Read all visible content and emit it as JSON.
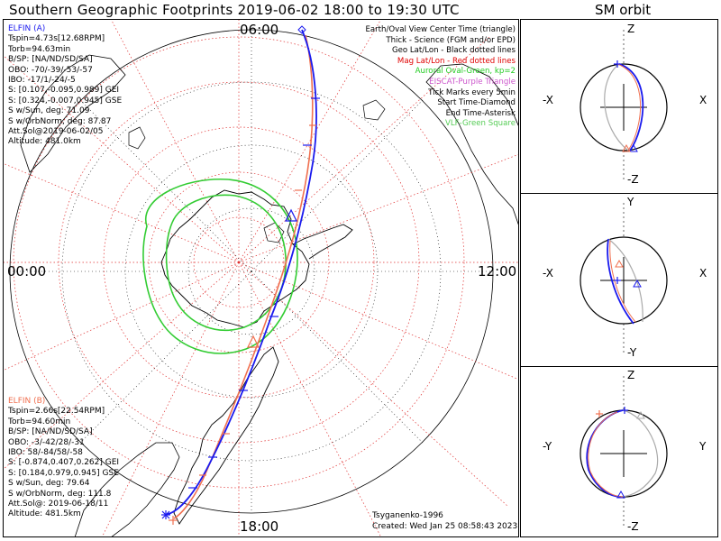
{
  "header": {
    "title": "Southern Geographic Footprints 2019-06-02 18:00 to 19:30 UTC",
    "sm_title": "SM orbit"
  },
  "map": {
    "hour_labels": {
      "top": "06:00",
      "left": "00:00",
      "right": "12:00",
      "bottom": "18:00"
    }
  },
  "elfin_a": {
    "name": "ELFIN (A)",
    "color": "#1a1aee",
    "lines": [
      "Tspin=4.73s[12.68RPM]",
      "Torb=94.63min",
      "B/SP: [NA/ND/SD/SA]",
      "OBO: -70/-39/-53/-57",
      "IBO: -17/1/-24/-5",
      "S: [0.107,-0.095,0.989] GEI",
      "S: [0.324,-0.007,0.945] GSE",
      "S w/Sun, deg: 71.09",
      "S w/OrbNorm, deg: 87.87",
      "Att.Sol@2019-06-02/05",
      "Altitude: 481.0km"
    ]
  },
  "elfin_b": {
    "name": "ELFIN (B)",
    "color": "#f07050",
    "lines": [
      "Tspin=2.66s[22.54RPM]",
      "Torb=94.60min",
      "B/SP: [NA/ND/SD/SA]",
      "OBO: -3/-42/28/-31",
      "IBO: 58/-84/58/-58",
      "S: [-0.874,0.407,0.262] GEI",
      "S: [0.184,0.979,0.945] GSE",
      "S w/Sun, deg: 79.64",
      "S w/OrbNorm, deg: 111.8",
      "Att.Sol@: 2019-06-18/11",
      "Altitude: 481.5km"
    ]
  },
  "legend": [
    {
      "text": "Earth/Oval View Center Time (triangle)",
      "color": "#000000"
    },
    {
      "text": "Thick - Science (FGM and/or EPD)",
      "color": "#000000"
    },
    {
      "text": "Geo Lat/Lon - Black dotted lines",
      "color": "#000000"
    },
    {
      "text": "Mag Lat/Lon - Red dotted lines",
      "color": "#e00000"
    },
    {
      "text": "Auroral Oval-Green, kp=2",
      "color": "#22cc22"
    },
    {
      "text": "EISCAT-Purple Triangle",
      "color": "#cc55cc"
    },
    {
      "text": "Tick Marks every 5min",
      "color": "#000000"
    },
    {
      "text": "Start Time-Diamond",
      "color": "#000000"
    },
    {
      "text": "End Time-Asterisk",
      "color": "#000000"
    },
    {
      "text": "VLF-Green Square",
      "color": "#55cc55"
    }
  ],
  "footer": {
    "model": "Tsyganenko-1996",
    "created": "Created: Wed Jan 25 08:58:43 2023"
  },
  "sm_panels": [
    {
      "top": "Z",
      "bottom": "-Z",
      "left": "-X",
      "right": "X"
    },
    {
      "top": "Y",
      "bottom": "-Y",
      "left": "-X",
      "right": "X"
    },
    {
      "top": "Z",
      "bottom": "-Z",
      "left": "-Y",
      "right": "Y"
    }
  ],
  "colors": {
    "oval": "#33cc33",
    "mag_grid": "#e03030",
    "geo_grid": "#000000",
    "orbit_gray": "#aaaaaa"
  }
}
